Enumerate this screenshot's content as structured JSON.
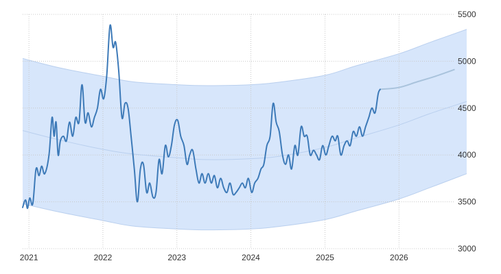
{
  "chart_data": {
    "type": "line",
    "title": "",
    "xlabel": "",
    "ylabel": "",
    "x_axis": {
      "type": "date",
      "range": [
        "2020-12-01",
        "2026-10-01"
      ],
      "ticks": [
        {
          "label": "2021",
          "date": "2021-01-01"
        },
        {
          "label": "2022",
          "date": "2022-01-01"
        },
        {
          "label": "2023",
          "date": "2023-01-01"
        },
        {
          "label": "2024",
          "date": "2024-01-01"
        },
        {
          "label": "2025",
          "date": "2025-01-01"
        },
        {
          "label": "2026",
          "date": "2026-01-01"
        }
      ]
    },
    "y_axis": {
      "position": "right",
      "range": [
        3000,
        5500
      ],
      "ticks": [
        3000,
        3500,
        4000,
        4500,
        5000,
        5500
      ]
    },
    "grid": true,
    "legend": "none",
    "colors": {
      "historical_line": "#3d7ab8",
      "forecast_line": "#a9c3dc",
      "band_fill": "#d7e6fb",
      "band_edge": "#b9cfee",
      "trend_line": "#b9cfee",
      "grid": "#c8c8c8"
    },
    "series": [
      {
        "role": "historical",
        "points": [
          [
            "2020-12-01",
            3440
          ],
          [
            "2020-12-15",
            3520
          ],
          [
            "2020-12-25",
            3430
          ],
          [
            "2021-01-05",
            3540
          ],
          [
            "2021-01-20",
            3480
          ],
          [
            "2021-02-05",
            3850
          ],
          [
            "2021-02-20",
            3780
          ],
          [
            "2021-03-05",
            3880
          ],
          [
            "2021-03-20",
            3800
          ],
          [
            "2021-04-10",
            4000
          ],
          [
            "2021-04-25",
            4400
          ],
          [
            "2021-05-05",
            4200
          ],
          [
            "2021-05-15",
            4350
          ],
          [
            "2021-05-25",
            4000
          ],
          [
            "2021-06-05",
            4150
          ],
          [
            "2021-06-20",
            4200
          ],
          [
            "2021-07-05",
            4150
          ],
          [
            "2021-07-20",
            4350
          ],
          [
            "2021-08-05",
            4200
          ],
          [
            "2021-08-20",
            4400
          ],
          [
            "2021-09-05",
            4350
          ],
          [
            "2021-09-20",
            4750
          ],
          [
            "2021-10-05",
            4350
          ],
          [
            "2021-10-20",
            4450
          ],
          [
            "2021-11-05",
            4300
          ],
          [
            "2021-11-20",
            4400
          ],
          [
            "2021-12-05",
            4500
          ],
          [
            "2021-12-20",
            4700
          ],
          [
            "2022-01-05",
            4600
          ],
          [
            "2022-01-20",
            4850
          ],
          [
            "2022-02-05",
            5380
          ],
          [
            "2022-02-20",
            5150
          ],
          [
            "2022-03-05",
            5200
          ],
          [
            "2022-03-20",
            4900
          ],
          [
            "2022-04-05",
            4400
          ],
          [
            "2022-04-20",
            4550
          ],
          [
            "2022-05-05",
            4500
          ],
          [
            "2022-05-20",
            4200
          ],
          [
            "2022-06-05",
            3850
          ],
          [
            "2022-06-20",
            3500
          ],
          [
            "2022-07-05",
            3850
          ],
          [
            "2022-07-20",
            3900
          ],
          [
            "2022-08-05",
            3600
          ],
          [
            "2022-08-20",
            3700
          ],
          [
            "2022-09-05",
            3550
          ],
          [
            "2022-09-20",
            3600
          ],
          [
            "2022-10-05",
            3950
          ],
          [
            "2022-10-20",
            3800
          ],
          [
            "2022-11-05",
            4100
          ],
          [
            "2022-11-20",
            3980
          ],
          [
            "2022-12-05",
            4100
          ],
          [
            "2022-12-20",
            4320
          ],
          [
            "2023-01-05",
            4370
          ],
          [
            "2023-01-20",
            4200
          ],
          [
            "2023-02-05",
            4100
          ],
          [
            "2023-02-20",
            3900
          ],
          [
            "2023-03-05",
            4000
          ],
          [
            "2023-03-20",
            4050
          ],
          [
            "2023-04-05",
            3850
          ],
          [
            "2023-04-20",
            3700
          ],
          [
            "2023-05-05",
            3800
          ],
          [
            "2023-05-20",
            3700
          ],
          [
            "2023-06-05",
            3800
          ],
          [
            "2023-06-20",
            3700
          ],
          [
            "2023-07-05",
            3780
          ],
          [
            "2023-07-20",
            3650
          ],
          [
            "2023-08-05",
            3750
          ],
          [
            "2023-08-20",
            3650
          ],
          [
            "2023-09-05",
            3600
          ],
          [
            "2023-09-20",
            3700
          ],
          [
            "2023-10-05",
            3580
          ],
          [
            "2023-10-20",
            3600
          ],
          [
            "2023-11-05",
            3650
          ],
          [
            "2023-11-20",
            3700
          ],
          [
            "2023-12-05",
            3650
          ],
          [
            "2023-12-20",
            3750
          ],
          [
            "2024-01-05",
            3600
          ],
          [
            "2024-01-20",
            3700
          ],
          [
            "2024-02-05",
            3750
          ],
          [
            "2024-02-20",
            3850
          ],
          [
            "2024-03-05",
            3900
          ],
          [
            "2024-03-20",
            4100
          ],
          [
            "2024-04-05",
            4200
          ],
          [
            "2024-04-20",
            4550
          ],
          [
            "2024-05-05",
            4350
          ],
          [
            "2024-05-20",
            4250
          ],
          [
            "2024-06-05",
            4000
          ],
          [
            "2024-06-20",
            3900
          ],
          [
            "2024-07-05",
            4000
          ],
          [
            "2024-07-20",
            3850
          ],
          [
            "2024-08-05",
            4100
          ],
          [
            "2024-08-20",
            4000
          ],
          [
            "2024-09-05",
            4300
          ],
          [
            "2024-09-20",
            4200
          ],
          [
            "2024-10-05",
            4200
          ],
          [
            "2024-10-20",
            4000
          ],
          [
            "2024-11-05",
            4050
          ],
          [
            "2024-11-20",
            4000
          ],
          [
            "2024-12-05",
            3950
          ],
          [
            "2024-12-20",
            4100
          ],
          [
            "2025-01-05",
            4000
          ],
          [
            "2025-01-20",
            4100
          ],
          [
            "2025-02-05",
            4200
          ],
          [
            "2025-02-20",
            4150
          ],
          [
            "2025-03-05",
            4200
          ],
          [
            "2025-03-20",
            4000
          ],
          [
            "2025-04-05",
            4100
          ],
          [
            "2025-04-20",
            4150
          ],
          [
            "2025-05-05",
            4100
          ],
          [
            "2025-05-20",
            4250
          ],
          [
            "2025-06-05",
            4200
          ],
          [
            "2025-06-20",
            4300
          ],
          [
            "2025-07-05",
            4200
          ],
          [
            "2025-07-20",
            4300
          ],
          [
            "2025-08-05",
            4400
          ],
          [
            "2025-08-20",
            4500
          ],
          [
            "2025-09-05",
            4450
          ],
          [
            "2025-09-20",
            4650
          ],
          [
            "2025-09-30",
            4700
          ]
        ]
      },
      {
        "role": "forecast",
        "points": [
          [
            "2025-09-30",
            4700
          ],
          [
            "2025-12-31",
            4720
          ],
          [
            "2026-03-31",
            4780
          ],
          [
            "2026-06-30",
            4840
          ],
          [
            "2026-09-30",
            4910
          ]
        ]
      },
      {
        "role": "trend",
        "points": [
          [
            "2020-12-01",
            4260
          ],
          [
            "2021-06-01",
            4160
          ],
          [
            "2022-01-01",
            4060
          ],
          [
            "2022-06-01",
            4010
          ],
          [
            "2023-01-01",
            3970
          ],
          [
            "2023-06-01",
            3950
          ],
          [
            "2024-01-01",
            3960
          ],
          [
            "2024-06-01",
            3990
          ],
          [
            "2025-01-01",
            4080
          ],
          [
            "2025-06-01",
            4180
          ],
          [
            "2026-01-01",
            4320
          ],
          [
            "2026-06-01",
            4440
          ],
          [
            "2026-12-01",
            4570
          ]
        ]
      },
      {
        "role": "band_upper",
        "points": [
          [
            "2020-12-01",
            5030
          ],
          [
            "2021-06-01",
            4930
          ],
          [
            "2022-01-01",
            4840
          ],
          [
            "2022-06-01",
            4780
          ],
          [
            "2023-01-01",
            4750
          ],
          [
            "2023-06-01",
            4740
          ],
          [
            "2024-01-01",
            4750
          ],
          [
            "2024-06-01",
            4780
          ],
          [
            "2025-01-01",
            4850
          ],
          [
            "2025-06-01",
            4950
          ],
          [
            "2026-01-01",
            5080
          ],
          [
            "2026-06-01",
            5200
          ],
          [
            "2026-12-01",
            5340
          ]
        ]
      },
      {
        "role": "band_lower",
        "points": [
          [
            "2020-12-01",
            3480
          ],
          [
            "2021-06-01",
            3390
          ],
          [
            "2022-01-01",
            3300
          ],
          [
            "2022-06-01",
            3240
          ],
          [
            "2023-01-01",
            3210
          ],
          [
            "2023-06-01",
            3200
          ],
          [
            "2024-01-01",
            3210
          ],
          [
            "2024-06-01",
            3240
          ],
          [
            "2025-01-01",
            3310
          ],
          [
            "2025-06-01",
            3400
          ],
          [
            "2026-01-01",
            3530
          ],
          [
            "2026-06-01",
            3650
          ],
          [
            "2026-12-01",
            3800
          ]
        ]
      }
    ]
  }
}
